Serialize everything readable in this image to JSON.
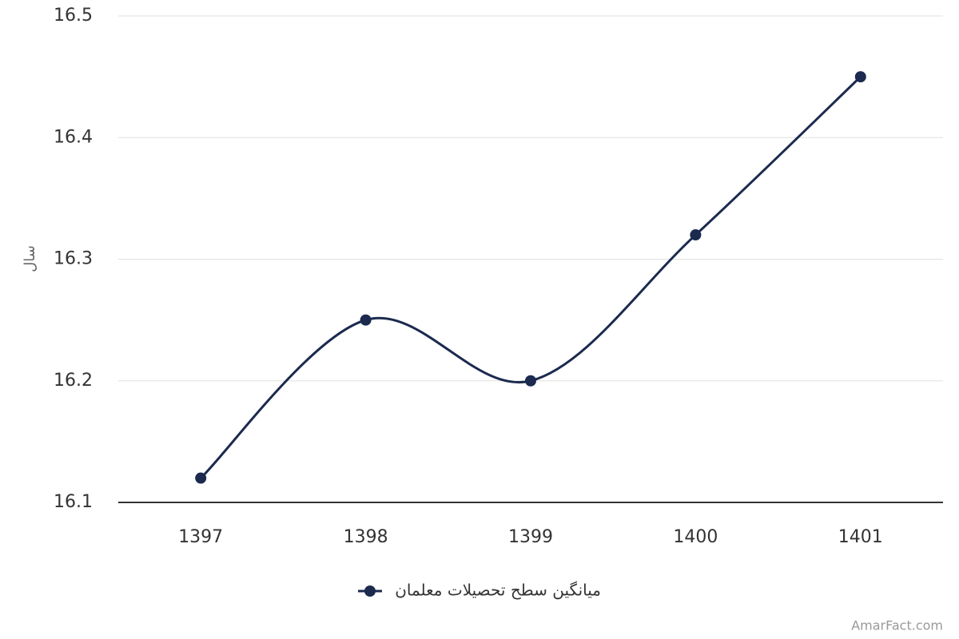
{
  "chart_data": {
    "type": "line",
    "y_label": "سال",
    "categories": [
      "1397",
      "1398",
      "1399",
      "1400",
      "1401"
    ],
    "series": [
      {
        "name": "میانگین سطح تحصیلات معلمان",
        "color": "#1b2a4e",
        "values": [
          16.12,
          16.25,
          16.2,
          16.32,
          16.45
        ]
      }
    ],
    "ylim": [
      16.1,
      16.5
    ],
    "yticks": [
      16.1,
      16.2,
      16.3,
      16.4,
      16.5
    ],
    "grid": true,
    "smooth": true,
    "credits": "AmarFact.com"
  }
}
